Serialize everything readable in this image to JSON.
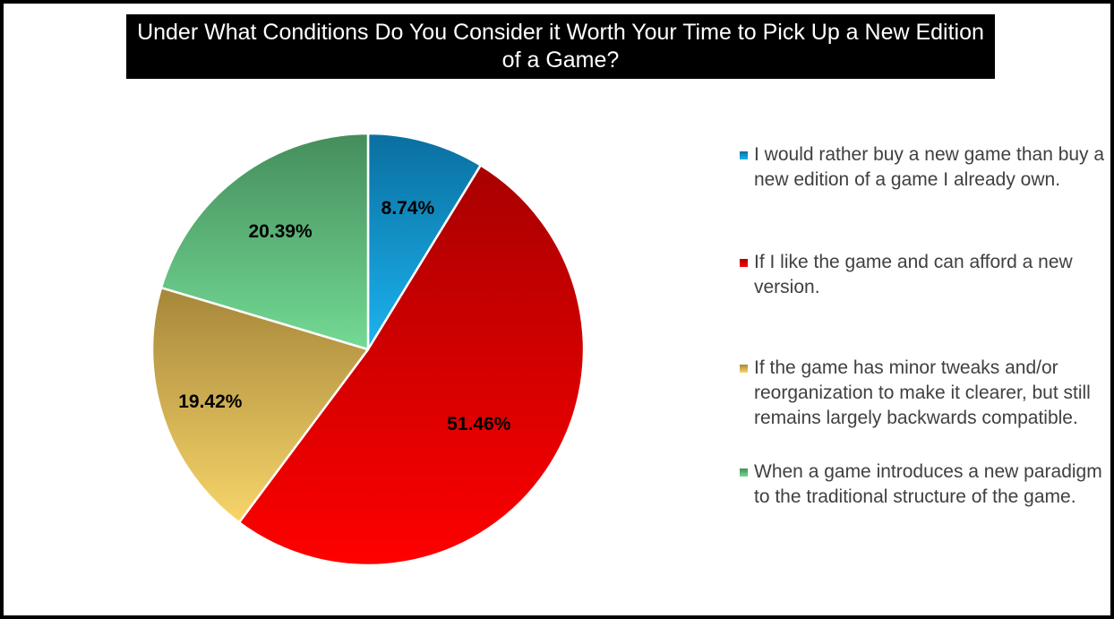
{
  "chart_data": {
    "type": "pie",
    "title": "Under What Conditions Do You Consider it Worth Your Time to Pick Up a New Edition of a Game?",
    "legend_position": "right",
    "slices": [
      {
        "label": "I would rather buy a new game than buy a new edition of a game I already own.",
        "value": 8.74,
        "data_label": "8.74%",
        "color": "#0e86c2",
        "color_light": "#1cb3ef",
        "color_dark": "#0a6f9f"
      },
      {
        "label": "If I like the game and can afford a new version.",
        "value": 51.46,
        "data_label": "51.46%",
        "color": "#e00000",
        "color_light": "#ff0000",
        "color_dark": "#a80000"
      },
      {
        "label": "If the game has minor tweaks and/or reorganization to make it clearer, but still remains largely backwards compatible.",
        "value": 19.42,
        "data_label": "19.42%",
        "color": "#c9a546",
        "color_light": "#f7d56a",
        "color_dark": "#a6873a"
      },
      {
        "label": "When a game introduces a new paradigm to the traditional structure of the game.",
        "value": 20.39,
        "data_label": "20.39%",
        "color": "#55ad70",
        "color_light": "#73da94",
        "color_dark": "#458d5c"
      }
    ]
  }
}
